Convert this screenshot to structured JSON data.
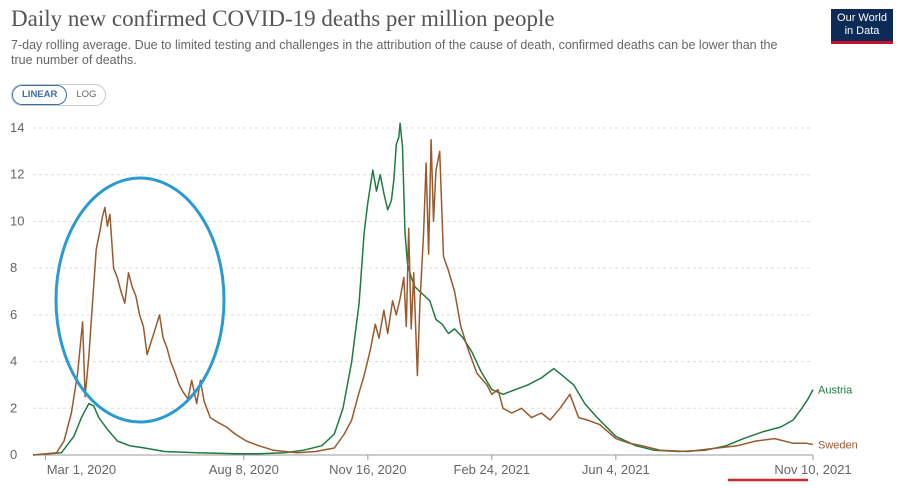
{
  "header": {
    "title": "Daily new confirmed COVID-19 deaths per million people",
    "subtitle": "7-day rolling average. Due to limited testing and challenges in the attribution of the cause of death, confirmed deaths can be lower than the true number of deaths."
  },
  "logo": {
    "line1": "Our World",
    "line2": "in Data"
  },
  "scale_toggle": {
    "linear": "LINEAR",
    "log": "LOG",
    "selected": "LINEAR"
  },
  "colors": {
    "austria": "#1f7a43",
    "sweden": "#9a5a2e",
    "annotation_circle": "#2b9ad1",
    "annotation_underline": "#d0262f"
  },
  "chart_data": {
    "type": "line",
    "title": "Daily new confirmed COVID-19 deaths per million people",
    "ylim": [
      0,
      14
    ],
    "grid": true,
    "y_ticks": [
      "0",
      "2",
      "4",
      "6",
      "8",
      "10",
      "12",
      "14"
    ],
    "x_tick_labels": [
      "Mar 1, 2020",
      "Aug 8, 2020",
      "Nov 16, 2020",
      "Feb 24, 2021",
      "Jun 4, 2021",
      "Nov 10, 2021"
    ],
    "x_tick_dates": [
      "2020-03-01",
      "2020-08-08",
      "2020-11-16",
      "2021-02-24",
      "2021-06-04",
      "2021-11-10"
    ],
    "x_range": [
      "2020-02-20",
      "2021-11-10"
    ],
    "series": [
      {
        "name": "Austria",
        "color": "#1f7a43",
        "points": [
          [
            "2020-02-20",
            0
          ],
          [
            "2020-03-14",
            0.1
          ],
          [
            "2020-03-24",
            0.8
          ],
          [
            "2020-03-30",
            1.6
          ],
          [
            "2020-04-05",
            2.2
          ],
          [
            "2020-04-09",
            2.1
          ],
          [
            "2020-04-13",
            1.6
          ],
          [
            "2020-04-20",
            1.1
          ],
          [
            "2020-04-28",
            0.6
          ],
          [
            "2020-05-08",
            0.4
          ],
          [
            "2020-05-20",
            0.3
          ],
          [
            "2020-06-05",
            0.15
          ],
          [
            "2020-07-01",
            0.1
          ],
          [
            "2020-08-01",
            0.05
          ],
          [
            "2020-08-20",
            0.05
          ],
          [
            "2020-09-10",
            0.1
          ],
          [
            "2020-09-25",
            0.2
          ],
          [
            "2020-10-10",
            0.4
          ],
          [
            "2020-10-20",
            0.9
          ],
          [
            "2020-10-27",
            2.0
          ],
          [
            "2020-11-03",
            4.0
          ],
          [
            "2020-11-09",
            6.5
          ],
          [
            "2020-11-13",
            9.5
          ],
          [
            "2020-11-16",
            10.8
          ],
          [
            "2020-11-20",
            12.2
          ],
          [
            "2020-11-23",
            11.3
          ],
          [
            "2020-11-26",
            12.0
          ],
          [
            "2020-11-29",
            11.2
          ],
          [
            "2020-12-02",
            10.5
          ],
          [
            "2020-12-05",
            10.9
          ],
          [
            "2020-12-07",
            11.8
          ],
          [
            "2020-12-09",
            13.3
          ],
          [
            "2020-12-11",
            13.6
          ],
          [
            "2020-12-12",
            14.2
          ],
          [
            "2020-12-14",
            13.2
          ],
          [
            "2020-12-16",
            9.5
          ],
          [
            "2020-12-18",
            8.2
          ],
          [
            "2020-12-21",
            7.6
          ],
          [
            "2020-12-24",
            7.2
          ],
          [
            "2020-12-28",
            7.0
          ],
          [
            "2021-01-01",
            6.8
          ],
          [
            "2021-01-05",
            6.6
          ],
          [
            "2021-01-10",
            5.8
          ],
          [
            "2021-01-15",
            5.6
          ],
          [
            "2021-01-20",
            5.2
          ],
          [
            "2021-01-25",
            5.4
          ],
          [
            "2021-02-01",
            5.0
          ],
          [
            "2021-02-08",
            4.4
          ],
          [
            "2021-02-15",
            3.6
          ],
          [
            "2021-02-24",
            2.8
          ],
          [
            "2021-03-05",
            2.6
          ],
          [
            "2021-03-15",
            2.8
          ],
          [
            "2021-03-25",
            3.0
          ],
          [
            "2021-04-05",
            3.3
          ],
          [
            "2021-04-15",
            3.7
          ],
          [
            "2021-04-22",
            3.4
          ],
          [
            "2021-05-01",
            3.0
          ],
          [
            "2021-05-10",
            2.2
          ],
          [
            "2021-05-20",
            1.6
          ],
          [
            "2021-06-04",
            0.8
          ],
          [
            "2021-06-20",
            0.4
          ],
          [
            "2021-07-05",
            0.2
          ],
          [
            "2021-07-25",
            0.15
          ],
          [
            "2021-08-15",
            0.2
          ],
          [
            "2021-09-01",
            0.4
          ],
          [
            "2021-09-15",
            0.7
          ],
          [
            "2021-10-01",
            1.0
          ],
          [
            "2021-10-15",
            1.2
          ],
          [
            "2021-10-25",
            1.5
          ],
          [
            "2021-11-01",
            2.0
          ],
          [
            "2021-11-06",
            2.4
          ],
          [
            "2021-11-10",
            2.8
          ]
        ]
      },
      {
        "name": "Sweden",
        "color": "#9a5a2e",
        "points": [
          [
            "2020-02-20",
            0
          ],
          [
            "2020-03-10",
            0.1
          ],
          [
            "2020-03-16",
            0.6
          ],
          [
            "2020-03-22",
            1.8
          ],
          [
            "2020-03-27",
            3.5
          ],
          [
            "2020-03-31",
            5.7
          ],
          [
            "2020-04-02",
            2.5
          ],
          [
            "2020-04-05",
            4.2
          ],
          [
            "2020-04-08",
            6.5
          ],
          [
            "2020-04-11",
            8.8
          ],
          [
            "2020-04-14",
            9.6
          ],
          [
            "2020-04-16",
            10.2
          ],
          [
            "2020-04-18",
            10.6
          ],
          [
            "2020-04-20",
            9.8
          ],
          [
            "2020-04-22",
            10.3
          ],
          [
            "2020-04-25",
            8.0
          ],
          [
            "2020-04-28",
            7.6
          ],
          [
            "2020-05-01",
            7.0
          ],
          [
            "2020-05-04",
            6.5
          ],
          [
            "2020-05-07",
            7.8
          ],
          [
            "2020-05-10",
            7.2
          ],
          [
            "2020-05-13",
            6.8
          ],
          [
            "2020-05-16",
            6.0
          ],
          [
            "2020-05-19",
            5.5
          ],
          [
            "2020-05-22",
            4.3
          ],
          [
            "2020-05-25",
            4.8
          ],
          [
            "2020-05-28",
            5.3
          ],
          [
            "2020-06-01",
            6.0
          ],
          [
            "2020-06-04",
            5.0
          ],
          [
            "2020-06-07",
            4.6
          ],
          [
            "2020-06-10",
            4.0
          ],
          [
            "2020-06-13",
            3.6
          ],
          [
            "2020-06-17",
            3.0
          ],
          [
            "2020-06-20",
            2.7
          ],
          [
            "2020-06-24",
            2.4
          ],
          [
            "2020-06-27",
            3.2
          ],
          [
            "2020-07-01",
            2.2
          ],
          [
            "2020-07-04",
            3.2
          ],
          [
            "2020-07-07",
            2.3
          ],
          [
            "2020-07-12",
            1.6
          ],
          [
            "2020-07-18",
            1.4
          ],
          [
            "2020-07-25",
            1.2
          ],
          [
            "2020-08-01",
            0.9
          ],
          [
            "2020-08-10",
            0.6
          ],
          [
            "2020-08-20",
            0.4
          ],
          [
            "2020-09-01",
            0.2
          ],
          [
            "2020-09-20",
            0.1
          ],
          [
            "2020-10-05",
            0.15
          ],
          [
            "2020-10-20",
            0.3
          ],
          [
            "2020-10-28",
            0.9
          ],
          [
            "2020-11-03",
            1.5
          ],
          [
            "2020-11-08",
            2.5
          ],
          [
            "2020-11-13",
            3.4
          ],
          [
            "2020-11-18",
            4.5
          ],
          [
            "2020-11-22",
            5.6
          ],
          [
            "2020-11-25",
            5.0
          ],
          [
            "2020-11-29",
            6.2
          ],
          [
            "2020-12-02",
            5.2
          ],
          [
            "2020-12-06",
            6.6
          ],
          [
            "2020-12-09",
            6.0
          ],
          [
            "2020-12-12",
            6.7
          ],
          [
            "2020-12-15",
            7.6
          ],
          [
            "2020-12-17",
            5.5
          ],
          [
            "2020-12-19",
            9.7
          ],
          [
            "2020-12-21",
            5.4
          ],
          [
            "2020-12-23",
            7.8
          ],
          [
            "2020-12-26",
            3.4
          ],
          [
            "2020-12-28",
            6.5
          ],
          [
            "2020-12-31",
            9.5
          ],
          [
            "2021-01-02",
            12.5
          ],
          [
            "2021-01-04",
            8.6
          ],
          [
            "2021-01-06",
            13.5
          ],
          [
            "2021-01-08",
            10.0
          ],
          [
            "2021-01-10",
            12.2
          ],
          [
            "2021-01-13",
            13.0
          ],
          [
            "2021-01-16",
            8.5
          ],
          [
            "2021-01-20",
            7.9
          ],
          [
            "2021-01-25",
            7.0
          ],
          [
            "2021-01-30",
            5.5
          ],
          [
            "2021-02-05",
            4.5
          ],
          [
            "2021-02-12",
            3.5
          ],
          [
            "2021-02-20",
            3.0
          ],
          [
            "2021-02-24",
            2.6
          ],
          [
            "2021-03-01",
            2.8
          ],
          [
            "2021-03-05",
            2.0
          ],
          [
            "2021-03-12",
            1.8
          ],
          [
            "2021-03-20",
            2.0
          ],
          [
            "2021-03-28",
            1.6
          ],
          [
            "2021-04-05",
            1.8
          ],
          [
            "2021-04-12",
            1.5
          ],
          [
            "2021-04-20",
            2.0
          ],
          [
            "2021-04-28",
            2.6
          ],
          [
            "2021-05-05",
            1.6
          ],
          [
            "2021-05-12",
            1.5
          ],
          [
            "2021-05-22",
            1.3
          ],
          [
            "2021-06-04",
            0.7
          ],
          [
            "2021-06-15",
            0.5
          ],
          [
            "2021-06-25",
            0.4
          ],
          [
            "2021-07-10",
            0.2
          ],
          [
            "2021-08-01",
            0.15
          ],
          [
            "2021-08-25",
            0.3
          ],
          [
            "2021-09-10",
            0.4
          ],
          [
            "2021-09-25",
            0.6
          ],
          [
            "2021-10-10",
            0.7
          ],
          [
            "2021-10-25",
            0.5
          ],
          [
            "2021-11-05",
            0.5
          ],
          [
            "2021-11-10",
            0.45
          ]
        ]
      }
    ],
    "annotations": [
      "circle around Sweden spring 2020 peak",
      "underline beneath Nov 10, 2021 label"
    ]
  }
}
